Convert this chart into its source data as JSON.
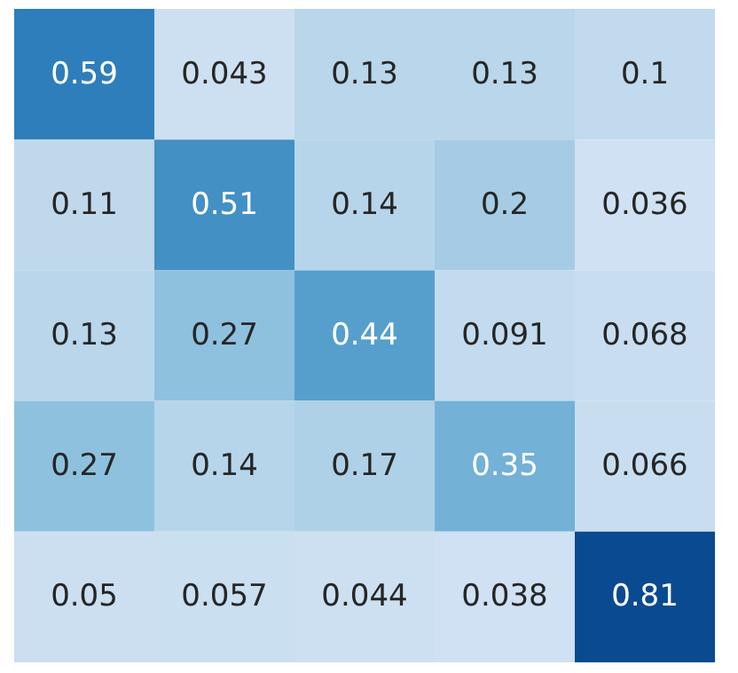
{
  "chart_data": {
    "type": "heatmap",
    "categories": [
      null,
      null,
      null,
      null,
      null
    ],
    "y_categories": [
      null,
      null,
      null,
      null,
      null
    ],
    "tick_labels": false,
    "cells": [
      [
        0.59,
        0.043,
        0.13,
        0.13,
        0.1
      ],
      [
        0.11,
        0.51,
        0.14,
        0.2,
        0.036
      ],
      [
        0.13,
        0.27,
        0.44,
        0.091,
        0.068
      ],
      [
        0.27,
        0.14,
        0.17,
        0.35,
        0.066
      ],
      [
        0.05,
        0.057,
        0.044,
        0.038,
        0.81
      ]
    ],
    "cell_labels": [
      [
        "0.59",
        "0.043",
        "0.13",
        "0.13",
        "0.1"
      ],
      [
        "0.11",
        "0.51",
        "0.14",
        "0.2",
        "0.036"
      ],
      [
        "0.13",
        "0.27",
        "0.44",
        "0.091",
        "0.068"
      ],
      [
        "0.27",
        "0.14",
        "0.17",
        "0.35",
        "0.066"
      ],
      [
        "0.05",
        "0.057",
        "0.044",
        "0.038",
        "0.81"
      ]
    ]
  }
}
